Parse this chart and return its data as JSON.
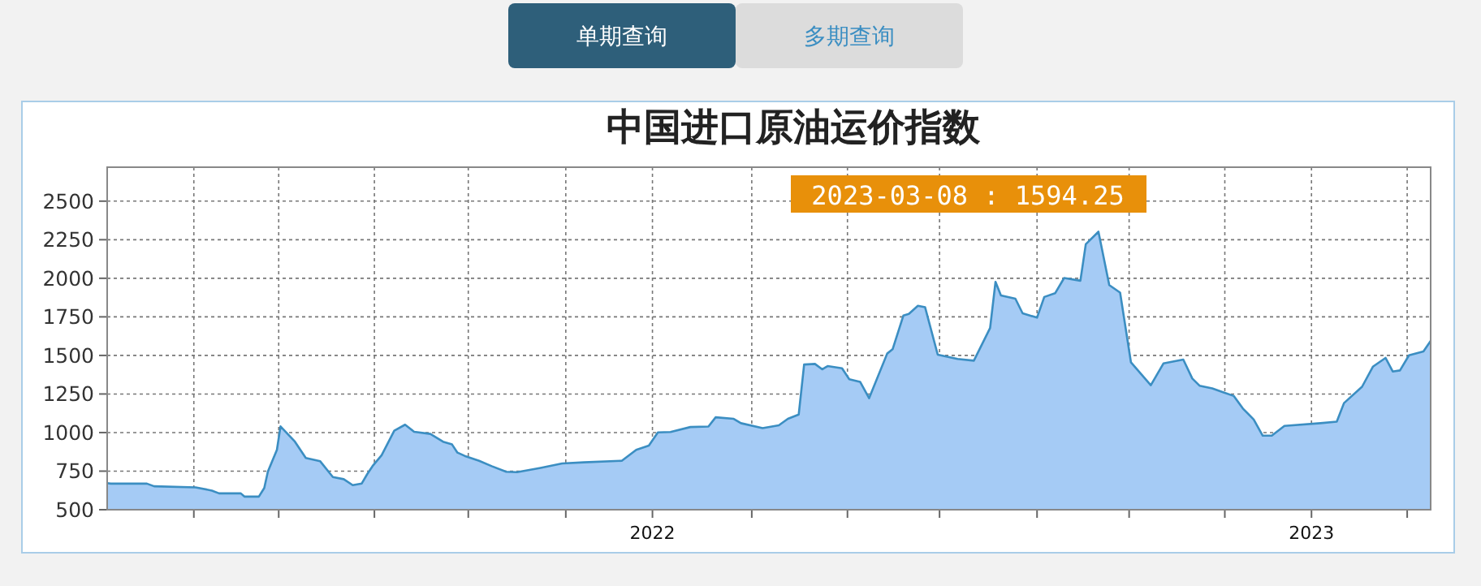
{
  "chart_data": {
    "type": "area",
    "title": "中国进口原油运价指数",
    "color": "#a5cbf5",
    "annotations": [
      "单期查询",
      "多期查询",
      "2023-03-08 : 1594.25"
    ],
    "x": [
      "2021-03-05",
      "2021-03-07",
      "2021-03-27",
      "2021-03-31",
      "2021-04-23",
      "2021-05-02",
      "2021-05-06",
      "2021-05-18",
      "2021-05-20",
      "2021-05-28",
      "2021-05-31",
      "2021-06-02",
      "2021-06-07",
      "2021-06-09",
      "2021-06-17",
      "2021-06-23",
      "2021-06-26",
      "2021-07-01",
      "2021-07-08",
      "2021-07-14",
      "2021-07-19",
      "2021-07-24",
      "2021-07-27",
      "2021-07-30",
      "2021-08-04",
      "2021-08-11",
      "2021-08-17",
      "2021-08-22",
      "2021-08-31",
      "2021-09-07",
      "2021-09-12",
      "2021-09-15",
      "2021-09-19",
      "2021-09-27",
      "2021-10-04",
      "2021-10-12",
      "2021-10-18",
      "2021-10-31",
      "2021-11-12",
      "2021-11-24",
      "2021-12-15",
      "2021-12-23",
      "2021-12-30",
      "2022-01-04",
      "2022-01-11",
      "2022-01-22",
      "2022-02-01",
      "2022-02-05",
      "2022-02-15",
      "2022-02-19",
      "2022-03-03",
      "2022-03-12",
      "2022-03-17",
      "2022-03-23",
      "2022-03-26",
      "2022-04-01",
      "2022-04-05",
      "2022-04-08",
      "2022-04-16",
      "2022-04-20",
      "2022-04-26",
      "2022-05-01",
      "2022-05-11",
      "2022-05-14",
      "2022-05-20",
      "2022-05-23",
      "2022-05-28",
      "2022-06-01",
      "2022-06-08",
      "2022-06-19",
      "2022-06-28",
      "2022-07-07",
      "2022-07-10",
      "2022-07-13",
      "2022-07-21",
      "2022-07-25",
      "2022-08-02",
      "2022-08-06",
      "2022-08-12",
      "2022-08-17",
      "2022-08-26",
      "2022-08-29",
      "2022-09-05",
      "2022-09-11",
      "2022-09-17",
      "2022-09-23",
      "2022-10-04",
      "2022-10-11",
      "2022-10-22",
      "2022-10-27",
      "2022-10-31",
      "2022-11-07",
      "2022-11-13",
      "2022-11-19",
      "2022-11-24",
      "2022-11-30",
      "2022-12-05",
      "2022-12-10",
      "2022-12-17",
      "2023-01-06",
      "2023-01-15",
      "2023-01-19",
      "2023-01-29",
      "2023-02-04",
      "2023-02-11",
      "2023-02-15",
      "2023-02-19",
      "2023-02-24",
      "2023-03-04",
      "2023-03-08"
    ],
    "values": [
      672,
      669,
      669,
      652,
      645,
      624,
      606,
      606,
      585,
      585,
      641,
      747,
      888,
      1040,
      941,
      835,
      828,
      814,
      712,
      698,
      659,
      670,
      730,
      783,
      853,
      1012,
      1051,
      1005,
      991,
      941,
      923,
      870,
      849,
      817,
      782,
      746,
      743,
      771,
      800,
      807,
      817,
      888,
      916,
      1001,
      1004,
      1036,
      1039,
      1099,
      1089,
      1061,
      1029,
      1047,
      1089,
      1117,
      1441,
      1445,
      1410,
      1431,
      1417,
      1346,
      1329,
      1223,
      1512,
      1540,
      1759,
      1769,
      1822,
      1812,
      1505,
      1477,
      1466,
      1678,
      1977,
      1889,
      1868,
      1773,
      1745,
      1879,
      1903,
      2002,
      1984,
      2221,
      2302,
      1956,
      1907,
      1456,
      1307,
      1448,
      1473,
      1350,
      1304,
      1286,
      1262,
      1237,
      1156,
      1085,
      980,
      980,
      1043,
      1061,
      1071,
      1191,
      1297,
      1427,
      1484,
      1396,
      1403,
      1501,
      1526,
      1594.25
    ],
    "xlim": [
      "2021-03-05",
      "2023-03-08"
    ],
    "xticks": [
      {
        "value": "2021-04-22",
        "label": null
      },
      {
        "value": "2021-06-08",
        "label": null
      },
      {
        "value": "2021-07-31",
        "label": null
      },
      {
        "value": "2021-09-21",
        "label": null
      },
      {
        "value": "2021-11-14",
        "label": null
      },
      {
        "value": "2022-01-01",
        "label": "2022"
      },
      {
        "value": "2022-02-25",
        "label": null
      },
      {
        "value": "2022-04-19",
        "label": null
      },
      {
        "value": "2022-06-09",
        "label": null
      },
      {
        "value": "2022-08-02",
        "label": null
      },
      {
        "value": "2022-09-22",
        "label": null
      },
      {
        "value": "2022-11-14",
        "label": null
      },
      {
        "value": "2023-01-01",
        "label": "2023"
      },
      {
        "value": "2023-02-23",
        "label": null
      }
    ],
    "ylim": [
      500,
      2720
    ],
    "yticks": [
      500,
      750,
      1000,
      1250,
      1500,
      1750,
      2000,
      2250,
      2500
    ],
    "grid": true,
    "marker": "none",
    "line_style": "solid"
  }
}
